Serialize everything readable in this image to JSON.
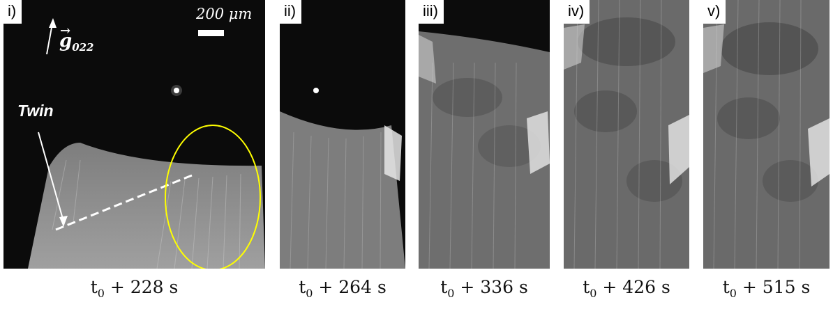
{
  "panels": [
    {
      "label": "i)",
      "time_prefix": "t",
      "time_sub": "0",
      "time_suffix": " + 228 s"
    },
    {
      "label": "ii)",
      "time_prefix": "t",
      "time_sub": "0",
      "time_suffix": " + 264 s"
    },
    {
      "label": "iii)",
      "time_prefix": "t",
      "time_sub": "0",
      "time_suffix": " + 336 s"
    },
    {
      "label": "iv)",
      "time_prefix": "t",
      "time_sub": "0",
      "time_suffix": " + 426 s"
    },
    {
      "label": "v)",
      "time_prefix": "t",
      "time_sub": "0",
      "time_suffix": " + 515 s"
    }
  ],
  "annotations": {
    "scale_bar": "200 μm",
    "g_vector_symbol": "g",
    "g_vector_sub": "022",
    "twin_label": "Twin",
    "ellipse_color": "#ffff00"
  }
}
